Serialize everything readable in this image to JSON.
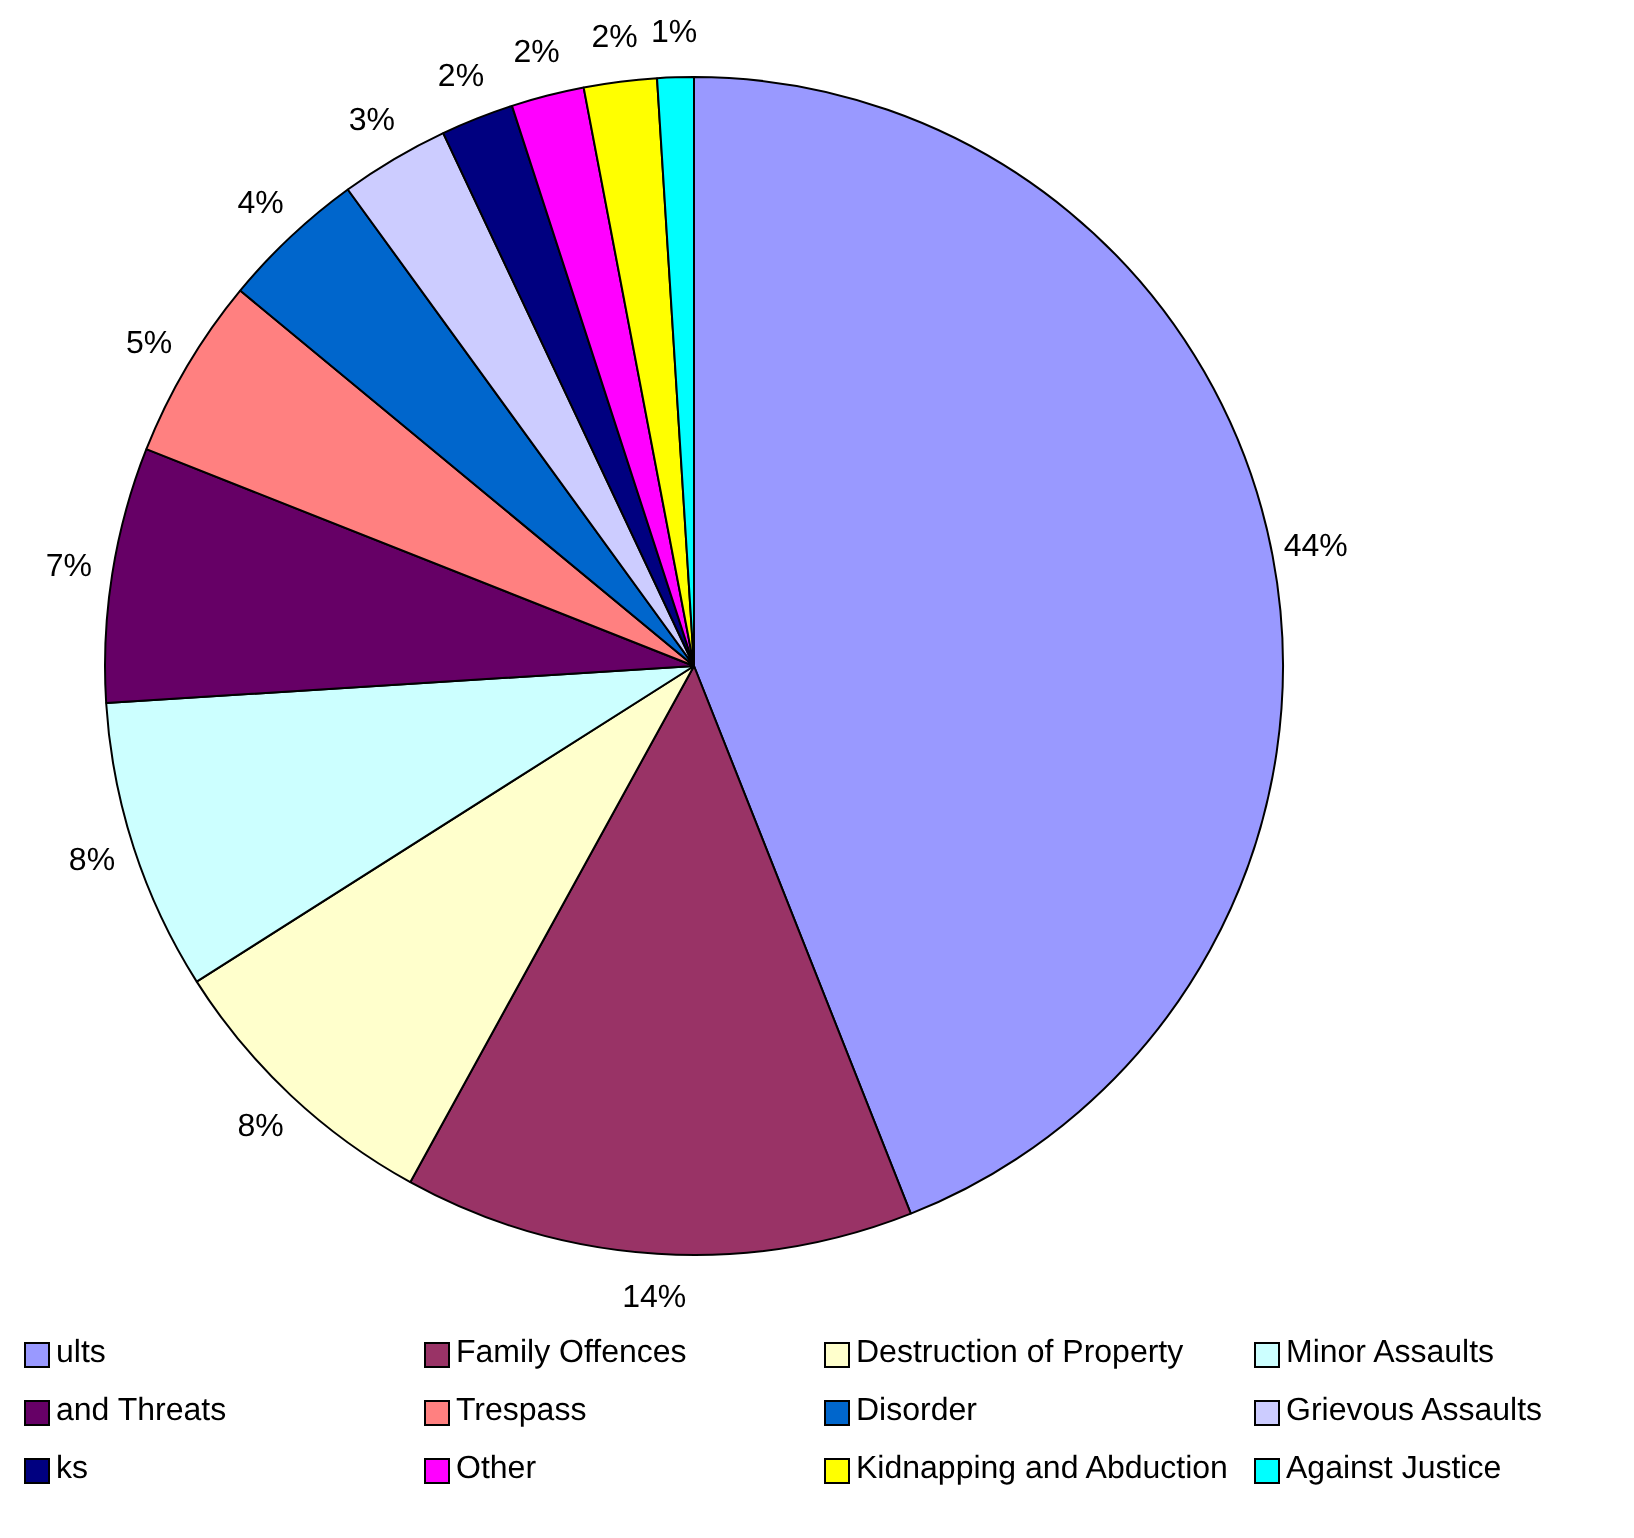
{
  "chart_data": {
    "type": "pie",
    "categories": [
      "ults",
      "Family Offences",
      "Destruction of Property",
      "Minor Assaults",
      "and Threats",
      "Trespass",
      "Disorder",
      "Grievous Assaults",
      "ks",
      "Other",
      "Kidnapping and Abduction",
      "Against Justice"
    ],
    "values": [
      44,
      14,
      8,
      8,
      7,
      5,
      4,
      3,
      2,
      2,
      2,
      1
    ],
    "value_labels": [
      "44%",
      "14%",
      "8%",
      "8%",
      "7%",
      "5%",
      "4%",
      "3%",
      "2%",
      "2%",
      "2%",
      "1%"
    ],
    "colors": [
      "#9999ff",
      "#993366",
      "#ffffcc",
      "#ccffff",
      "#660066",
      "#ff8080",
      "#0066cc",
      "#ccccff",
      "#000080",
      "#ff00ff",
      "#ffff00",
      "#00ffff"
    ],
    "legend": "bottom"
  }
}
